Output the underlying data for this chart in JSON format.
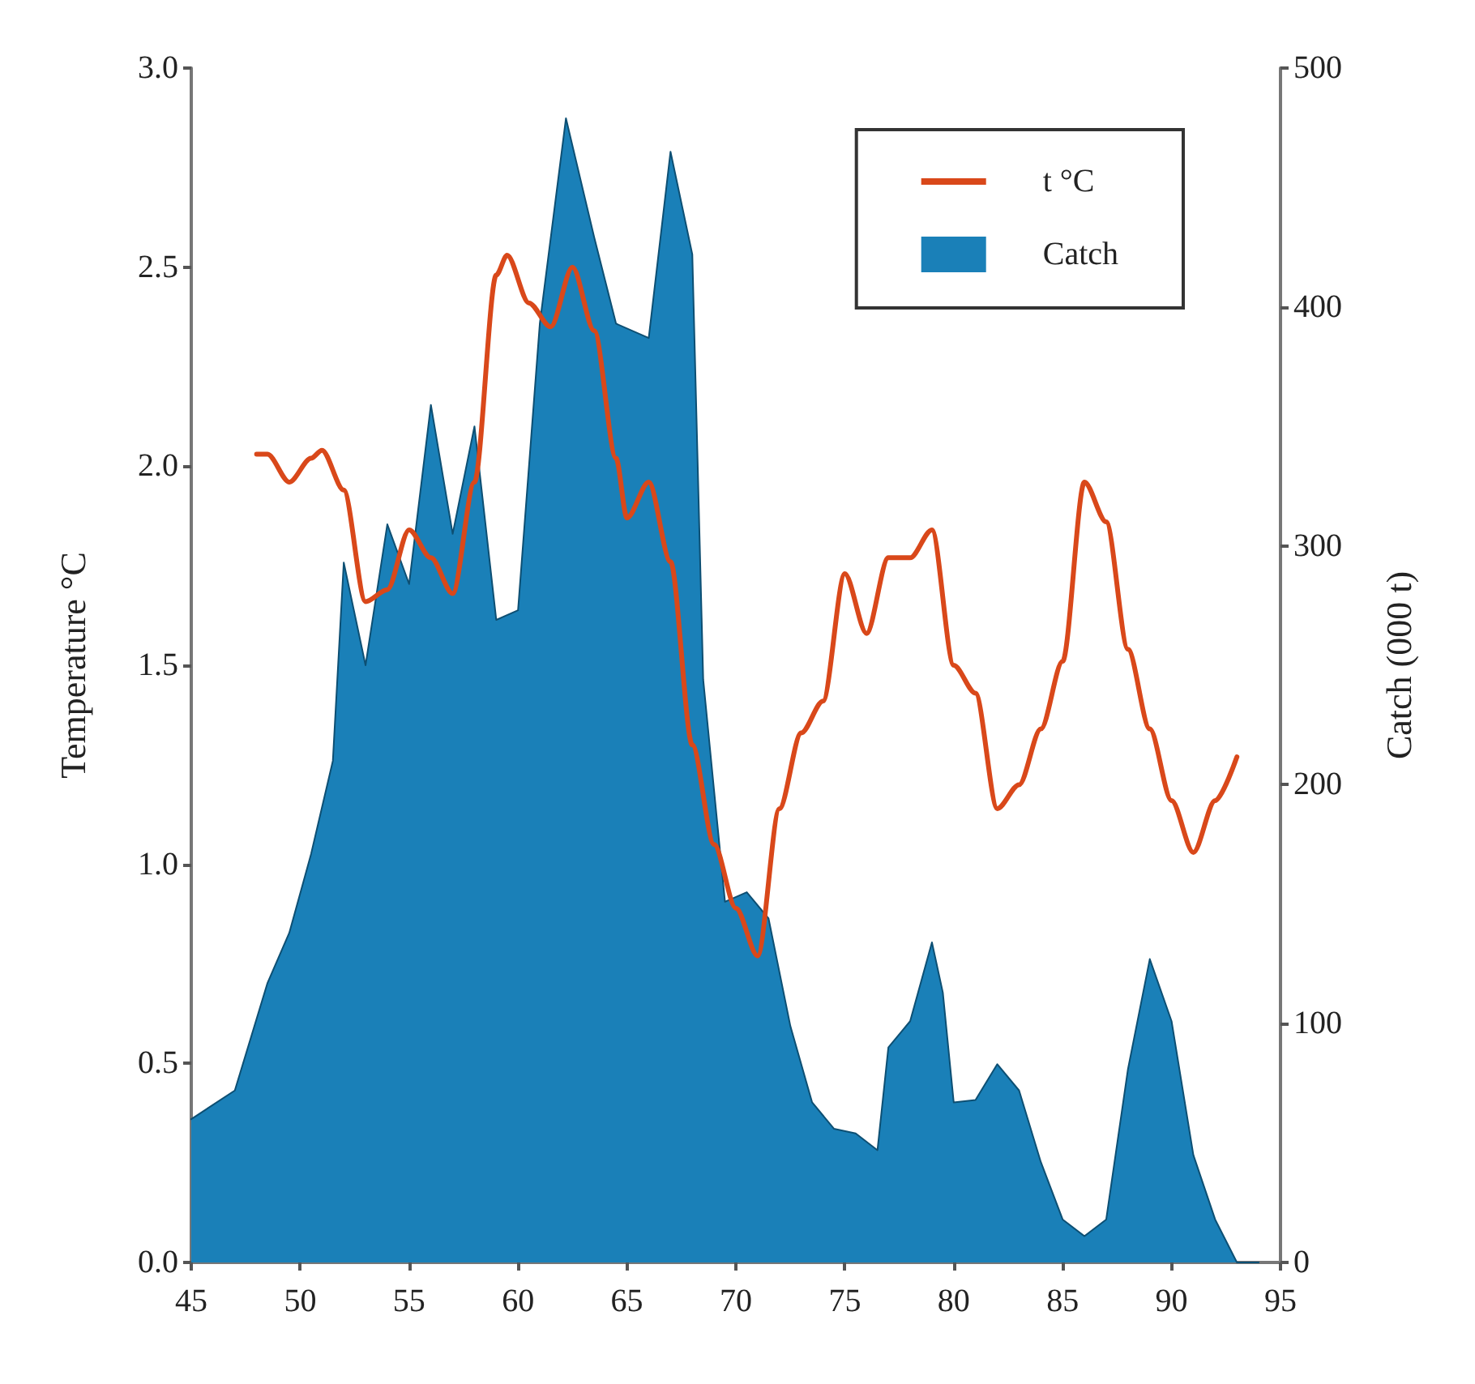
{
  "chart_data": {
    "type": "line",
    "ylabel": "Temperature °C",
    "y2label": "Catch (000 t)",
    "series": [
      {
        "name": "t °C",
        "color": "#d9481a",
        "x": [
          48,
          48.5,
          49.5,
          50.5,
          51,
          52,
          53,
          54,
          55,
          56,
          57,
          58,
          59,
          59.5,
          60.5,
          61.5,
          62.5,
          63.5,
          64.5,
          65,
          66,
          67,
          68,
          69,
          70,
          71,
          72,
          73,
          74,
          75,
          76,
          77,
          78,
          79,
          80,
          81,
          82,
          83,
          84,
          85,
          86,
          87,
          88,
          89,
          90,
          91,
          92,
          93
        ],
        "values": [
          2.03,
          2.03,
          1.96,
          2.02,
          2.04,
          1.94,
          1.66,
          1.69,
          1.84,
          1.77,
          1.68,
          1.96,
          2.48,
          2.53,
          2.41,
          2.35,
          2.5,
          2.34,
          2.02,
          1.87,
          1.96,
          1.76,
          1.3,
          1.05,
          0.89,
          0.77,
          1.14,
          1.33,
          1.41,
          1.73,
          1.58,
          1.77,
          1.77,
          1.84,
          1.5,
          1.43,
          1.14,
          1.2,
          1.34,
          1.51,
          1.96,
          1.86,
          1.54,
          1.34,
          1.16,
          1.03,
          1.16,
          1.27
        ]
      },
      {
        "name": "Catch",
        "type": "area",
        "axis": "y2",
        "color": "#1a80b8",
        "x": [
          45,
          47,
          48.5,
          49.5,
          50.5,
          51.5,
          52,
          53,
          54,
          55,
          56,
          57,
          58,
          59,
          60,
          61,
          62.2,
          63.5,
          64.5,
          66,
          67,
          68,
          68.5,
          69.5,
          70.5,
          71.5,
          72.5,
          73.5,
          74.5,
          75.5,
          76.5,
          77,
          78,
          79,
          79.5,
          80,
          81,
          82,
          83,
          84,
          85,
          86,
          87,
          88,
          89,
          90,
          91,
          92,
          93,
          94
        ],
        "values": [
          60,
          72,
          117,
          138,
          171,
          210,
          293,
          250,
          309,
          284,
          359,
          305,
          350,
          269,
          273,
          393,
          479,
          429,
          393,
          387,
          465,
          422,
          244,
          151,
          155,
          144,
          99,
          67,
          56,
          54,
          47,
          90,
          101,
          134,
          113,
          67,
          68,
          83,
          72,
          42,
          18,
          11,
          18,
          81,
          127,
          101,
          45,
          18,
          0,
          0
        ]
      }
    ],
    "xlim": [
      45,
      95
    ],
    "xticks": [
      45,
      50,
      55,
      60,
      65,
      70,
      75,
      80,
      85,
      90,
      95
    ],
    "ylim": [
      0,
      3
    ],
    "yticks": [
      {
        "value": 0,
        "label": "0.0"
      },
      {
        "value": 0.5,
        "label": "0.5"
      },
      {
        "value": 1,
        "label": "1.0"
      },
      {
        "value": 1.5,
        "label": "1.5"
      },
      {
        "value": 2,
        "label": "2.0"
      },
      {
        "value": 2.5,
        "label": "2.5"
      },
      {
        "value": 3,
        "label": "3.0"
      }
    ],
    "y2lim": [
      0,
      500
    ],
    "y2ticks": [
      0,
      100,
      200,
      300,
      400,
      500
    ],
    "legend": "top right",
    "marker": "none",
    "line_style": "solid"
  }
}
